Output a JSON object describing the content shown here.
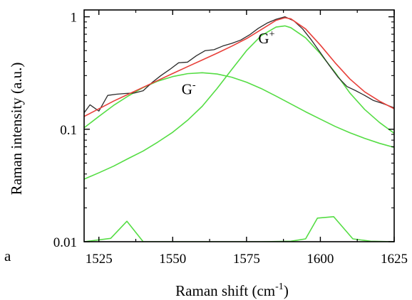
{
  "chart_data": {
    "type": "line",
    "panel_label": "a",
    "xlabel": "Raman shift (cm",
    "xlabel_sup": "-1",
    "xlabel_tail": ")",
    "ylabel": "Raman intensity (a.u.)",
    "xlim": [
      1520,
      1625
    ],
    "ylim": [
      0.01,
      1.15
    ],
    "y_scale": "log",
    "x_ticks": [
      1525,
      1550,
      1575,
      1600,
      1625
    ],
    "x_tick_labels": [
      "1525",
      "1550",
      "1575",
      "1600",
      "1625"
    ],
    "y_ticks": [
      0.01,
      0.1,
      1
    ],
    "y_tick_labels": [
      "0.01",
      "0.1",
      "1"
    ],
    "grid": false,
    "legend": "none",
    "annotations": [
      {
        "base": "G",
        "sup": "-",
        "x": 1553,
        "y": 0.205
      },
      {
        "base": "G",
        "sup": "+",
        "x": 1579,
        "y": 0.58
      }
    ],
    "series": [
      {
        "role": "data",
        "color": "#2b2b2b",
        "x": [
          1520,
          1522,
          1525,
          1528,
          1531,
          1534,
          1537,
          1540,
          1543,
          1546,
          1549,
          1552,
          1555,
          1558,
          1561,
          1564,
          1567,
          1570,
          1573,
          1576,
          1579,
          1582,
          1585,
          1588,
          1591,
          1594,
          1597,
          1600,
          1603,
          1606,
          1609,
          1612,
          1615,
          1618,
          1621,
          1625
        ],
        "y": [
          0.14,
          0.165,
          0.145,
          0.2,
          0.205,
          0.208,
          0.21,
          0.22,
          0.26,
          0.3,
          0.34,
          0.39,
          0.395,
          0.45,
          0.5,
          0.51,
          0.55,
          0.58,
          0.62,
          0.69,
          0.79,
          0.88,
          0.95,
          1.0,
          0.92,
          0.78,
          0.62,
          0.48,
          0.37,
          0.29,
          0.24,
          0.22,
          0.2,
          0.18,
          0.17,
          0.155
        ]
      },
      {
        "role": "fit",
        "color": "#e8403a",
        "x": [
          1520,
          1525,
          1530,
          1535,
          1540,
          1545,
          1550,
          1555,
          1560,
          1565,
          1570,
          1575,
          1580,
          1585,
          1588,
          1590,
          1595,
          1600,
          1605,
          1610,
          1615,
          1620,
          1625
        ],
        "y": [
          0.13,
          0.152,
          0.178,
          0.205,
          0.236,
          0.272,
          0.313,
          0.36,
          0.413,
          0.474,
          0.548,
          0.64,
          0.77,
          0.93,
          0.98,
          0.96,
          0.78,
          0.56,
          0.39,
          0.28,
          0.215,
          0.178,
          0.152
        ]
      },
      {
        "role": "component G-",
        "color": "#55dd44",
        "x": [
          1520,
          1525,
          1530,
          1535,
          1540,
          1545,
          1550,
          1555,
          1560,
          1565,
          1570,
          1575,
          1580,
          1585,
          1590,
          1595,
          1600,
          1605,
          1610,
          1615,
          1620,
          1625
        ],
        "y": [
          0.103,
          0.13,
          0.163,
          0.198,
          0.235,
          0.268,
          0.294,
          0.312,
          0.318,
          0.31,
          0.29,
          0.262,
          0.23,
          0.197,
          0.168,
          0.143,
          0.123,
          0.106,
          0.093,
          0.083,
          0.075,
          0.069
        ]
      },
      {
        "role": "component G+",
        "color": "#55dd44",
        "x": [
          1520,
          1525,
          1530,
          1535,
          1540,
          1545,
          1550,
          1555,
          1560,
          1565,
          1570,
          1575,
          1580,
          1585,
          1588,
          1590,
          1595,
          1600,
          1605,
          1610,
          1615,
          1620,
          1625
        ],
        "y": [
          0.036,
          0.041,
          0.047,
          0.055,
          0.064,
          0.077,
          0.094,
          0.12,
          0.16,
          0.23,
          0.34,
          0.5,
          0.68,
          0.81,
          0.83,
          0.8,
          0.65,
          0.47,
          0.32,
          0.21,
          0.15,
          0.115,
          0.092
        ]
      },
      {
        "role": "component baseline",
        "color": "#55dd44",
        "x": [
          1520,
          1529,
          1534.5,
          1540,
          1550,
          1560,
          1570,
          1580,
          1590,
          1595,
          1599,
          1604.5,
          1611,
          1617,
          1625
        ],
        "y": [
          0.01,
          0.0107,
          0.0152,
          0.01,
          0.01,
          0.01,
          0.01,
          0.01,
          0.0101,
          0.0106,
          0.0162,
          0.0167,
          0.0106,
          0.0101,
          0.01
        ]
      }
    ]
  }
}
